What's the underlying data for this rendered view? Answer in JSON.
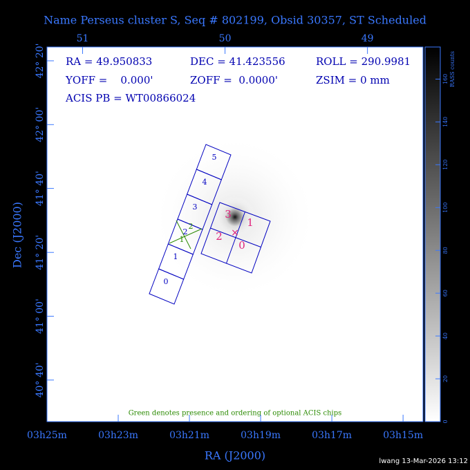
{
  "chart_data": {
    "type": "image",
    "title": "Name Perseus cluster S, Seq # 802199, Obsid 30357, ST Scheduled",
    "x_label": "RA (J2000)",
    "y_label": "Dec (J2000)",
    "xlim": [
      205,
      194.44
    ],
    "xticks": [
      {
        "value": 205,
        "label": "03h25m"
      },
      {
        "value": 203,
        "label": "03h23m"
      },
      {
        "value": 201,
        "label": "03h21m"
      },
      {
        "value": 199,
        "label": "03h19m"
      },
      {
        "value": 197,
        "label": "03h17m"
      },
      {
        "value": 195,
        "label": "03h15m"
      }
    ],
    "x2lim": [
      51.25,
      48.61
    ],
    "x2ticks": [
      51,
      50,
      49
    ],
    "ylim": [
      40.45,
      42.405
    ],
    "yticks": [
      {
        "value": 42.333,
        "label": "42° 20'"
      },
      {
        "value": 42.0,
        "label": "42° 00'"
      },
      {
        "value": 41.667,
        "label": "41° 40'"
      },
      {
        "value": 41.333,
        "label": "41° 20'"
      },
      {
        "value": 41.0,
        "label": "41° 00'"
      },
      {
        "value": 40.667,
        "label": "40° 40'"
      }
    ],
    "colorbar": {
      "label": "RASS counts",
      "lim": [
        0,
        175
      ],
      "ticks": [
        0,
        20,
        40,
        60,
        80,
        100,
        120,
        140,
        160
      ]
    },
    "info": [
      "RA = 49.950833",
      "DEC = 41.423556",
      "ROLL = 290.9981",
      "YOFF =    0.000'",
      "ZOFF =  0.0000'",
      "ZSIM = 0 mm",
      "ACIS PB = WT00866024"
    ],
    "acis_s_chips": [
      "0",
      "1",
      "2",
      "3",
      "4",
      "5"
    ],
    "acis_i_chips": [
      "0",
      "1",
      "2",
      "3"
    ],
    "optional_chips": [
      "1",
      "2"
    ],
    "note": "Green denotes presence and ordering of optional ACIS chips",
    "footer": "lwang 13-Mar-2026 13:12"
  }
}
